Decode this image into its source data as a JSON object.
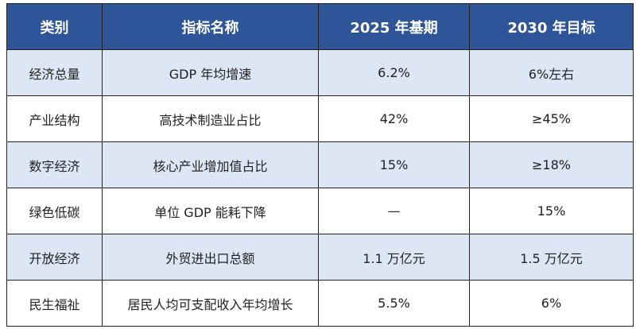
{
  "table": {
    "header": [
      "类别",
      "指标名称",
      "2025 年基期",
      "2030 年目标"
    ],
    "rows": [
      [
        "经济总量",
        "GDP 年均增速",
        "6.2%",
        "6%左右"
      ],
      [
        "产业结构",
        "高技术制造业占比",
        "42%",
        "≥45%"
      ],
      [
        "数字经济",
        "核心产业增加值占比",
        "15%",
        "≥18%"
      ],
      [
        "绿色低碳",
        "单位 GDP 能耗下降",
        "—",
        "15%"
      ],
      [
        "开放经济",
        "外贸进出口总额",
        "1.1 万亿元",
        "1.5 万亿元"
      ],
      [
        "民生福祉",
        "居民人均可支配收入年均增长",
        "5.5%",
        "6%"
      ]
    ]
  }
}
